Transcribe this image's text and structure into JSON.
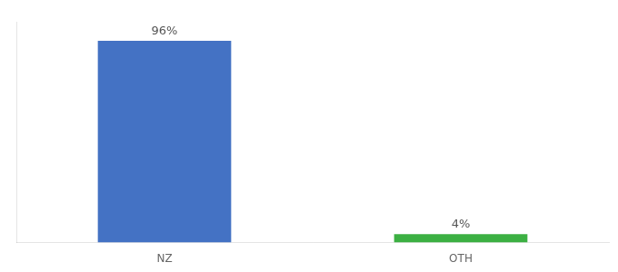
{
  "chart_data": {
    "type": "bar",
    "categories": [
      "NZ",
      "OTH"
    ],
    "values": [
      96,
      4
    ],
    "value_labels": [
      "96%",
      "4%"
    ],
    "colors": [
      "#4472c4",
      "#3cb043"
    ],
    "ylim": [
      0,
      105
    ],
    "grid": false,
    "data_labels": true,
    "tick_labels": "x"
  }
}
